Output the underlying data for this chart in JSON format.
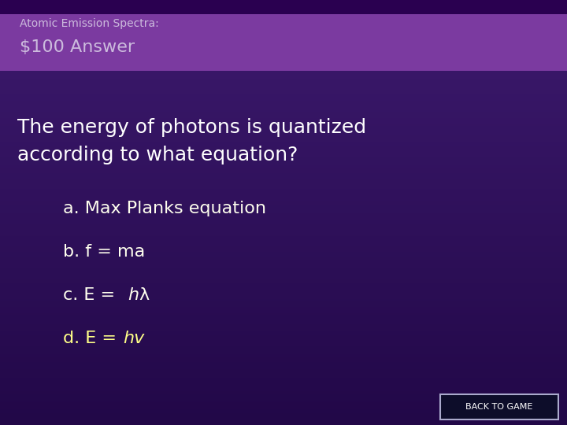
{
  "bg_top_color": "#3d1a6e",
  "bg_bottom_color": "#2a0a5e",
  "header_top_strip_color": "#2a0050",
  "header_band_color": "#7b3aa0",
  "header_subtitle": "Atomic Emission Spectra:",
  "header_title": "$100 Answer",
  "question_line1": "The energy of photons is quantized",
  "question_line2": "according to what equation?",
  "opt_a": "a. Max Planks equation",
  "opt_b": "b. f = ma",
  "opt_c_pre": "c. E = ",
  "opt_c_italic": "h",
  "opt_c_post": "λ",
  "opt_d_pre": "d. E =",
  "opt_d_italic": "hv",
  "back_button_text": "BACK TO GAME",
  "text_white": "#ffffff",
  "text_cream": "#ffffee",
  "text_yellow": "#ffff88",
  "text_header": "#ccbbdd",
  "question_fontsize": 18,
  "option_fontsize": 16,
  "header_subtitle_fontsize": 10,
  "header_title_fontsize": 16
}
